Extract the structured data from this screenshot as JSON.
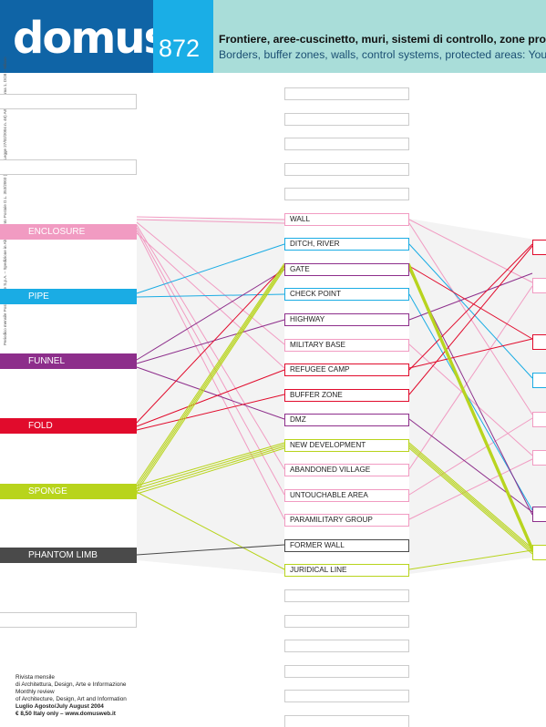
{
  "header": {
    "logo": "domus",
    "issue": "872",
    "title_it": "Frontiere, aree-cuscinetto, muri, sistemi di controllo, zone prot",
    "title_en": "Borders, buffer zones, walls, control systems, protected areas: You",
    "colors": {
      "logo_bg": "#0f64a6",
      "issue_bg": "#1aaee6",
      "title_bg": "#a9ddd9"
    }
  },
  "spine_text": "Periodico mensile Poste Italiane S.p.A. – Spedizione in Abbonamento Postale D.L. 353/2003 (conv. in Legge 27/02/2004 n. 46) Art. 1, Comma 1, DCB – Milano",
  "categories": [
    {
      "label": "ENCLOSURE",
      "color": "#f19bc2"
    },
    {
      "label": "PIPE",
      "color": "#1aace4"
    },
    {
      "label": "FUNNEL",
      "color": "#8d2e8b"
    },
    {
      "label": "FOLD",
      "color": "#e10b2c"
    },
    {
      "label": "SPONGE",
      "color": "#b8d41c"
    },
    {
      "label": "PHANTOM LIMB",
      "color": "#4a4a4a"
    }
  ],
  "center_items": [
    {
      "label": "WALL"
    },
    {
      "label": "DITCH, RIVER"
    },
    {
      "label": "GATE"
    },
    {
      "label": "CHECK POINT"
    },
    {
      "label": "HIGHWAY"
    },
    {
      "label": "MILITARY BASE"
    },
    {
      "label": "REFUGEE CAMP"
    },
    {
      "label": "BUFFER ZONE"
    },
    {
      "label": "DMZ"
    },
    {
      "label": "NEW DEVELOPMENT"
    },
    {
      "label": "ABANDONED VILLAGE"
    },
    {
      "label": "UNTOUCHABLE AREA"
    },
    {
      "label": "PARAMILITARY GROUP"
    },
    {
      "label": "FORMER WALL"
    },
    {
      "label": "JURIDICAL LINE"
    }
  ],
  "footer": {
    "line1": "Rivista mensile",
    "line2": "di Architettura, Design, Arte e Informazione",
    "line3": "Monthly review",
    "line4": "of Architecture, Design, Art and Information",
    "line5": "Luglio Agosto/July August 2004",
    "line6": "€ 8,50 Italy only – www.domusweb.it"
  }
}
